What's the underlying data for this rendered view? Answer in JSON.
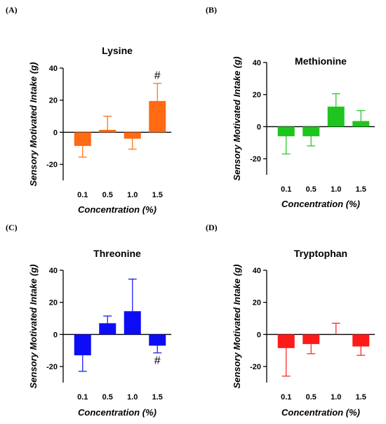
{
  "figure": {
    "panels": [
      "(A)",
      "(B)",
      "(C)",
      "(D)"
    ]
  },
  "chart_data": [
    {
      "type": "bar",
      "panel": "(A)",
      "title": "Lysine",
      "xlabel": "Concentration (%)",
      "ylabel": "Sensory Motivated Intake (g)",
      "categories": [
        "0.1",
        "0.5",
        "1.0",
        "1.5"
      ],
      "values": [
        -8.5,
        1.5,
        -4,
        19.5
      ],
      "error": [
        7,
        8.5,
        6.5,
        11
      ],
      "ylim": [
        -30,
        40
      ],
      "yticks": [
        -20,
        0,
        20,
        40
      ],
      "color": "#FF6A13",
      "annotations": [
        {
          "category": "1.5",
          "text": "#",
          "position": "above"
        }
      ]
    },
    {
      "type": "bar",
      "panel": "(B)",
      "title": "Methionine",
      "xlabel": "Concentration (%)",
      "ylabel": "Sensory Motivated Intake (g)",
      "categories": [
        "0.1",
        "0.5",
        "1.0",
        "1.5"
      ],
      "values": [
        -6,
        -6,
        12.5,
        3.5
      ],
      "error": [
        11,
        6,
        8,
        6.5
      ],
      "ylim": [
        -30,
        40
      ],
      "yticks": [
        -20,
        0,
        20,
        40
      ],
      "color": "#1FC51F",
      "annotations": []
    },
    {
      "type": "bar",
      "panel": "(C)",
      "title": "Threonine",
      "xlabel": "Concentration (%)",
      "ylabel": "Sensory Motivated Intake (g)",
      "categories": [
        "0.1",
        "0.5",
        "1.0",
        "1.5"
      ],
      "values": [
        -13,
        7,
        14.5,
        -7
      ],
      "error": [
        10,
        4.5,
        20,
        4.5
      ],
      "ylim": [
        -30,
        40
      ],
      "yticks": [
        -20,
        0,
        20,
        40
      ],
      "color": "#0D0DF5",
      "annotations": [
        {
          "category": "1.5",
          "text": "#",
          "position": "below"
        }
      ]
    },
    {
      "type": "bar",
      "panel": "(D)",
      "title": "Tryptophan",
      "xlabel": "Concentration (%)",
      "ylabel": "Sensory Motivated Intake (g)",
      "categories": [
        "0.1",
        "0.5",
        "1.0",
        "1.5"
      ],
      "values": [
        -8.5,
        -6,
        0,
        -7.5
      ],
      "error": [
        17.5,
        6,
        7,
        5.5
      ],
      "ylim": [
        -30,
        40
      ],
      "yticks": [
        -20,
        0,
        20,
        40
      ],
      "color": "#FF1A1A",
      "annotations": []
    }
  ]
}
